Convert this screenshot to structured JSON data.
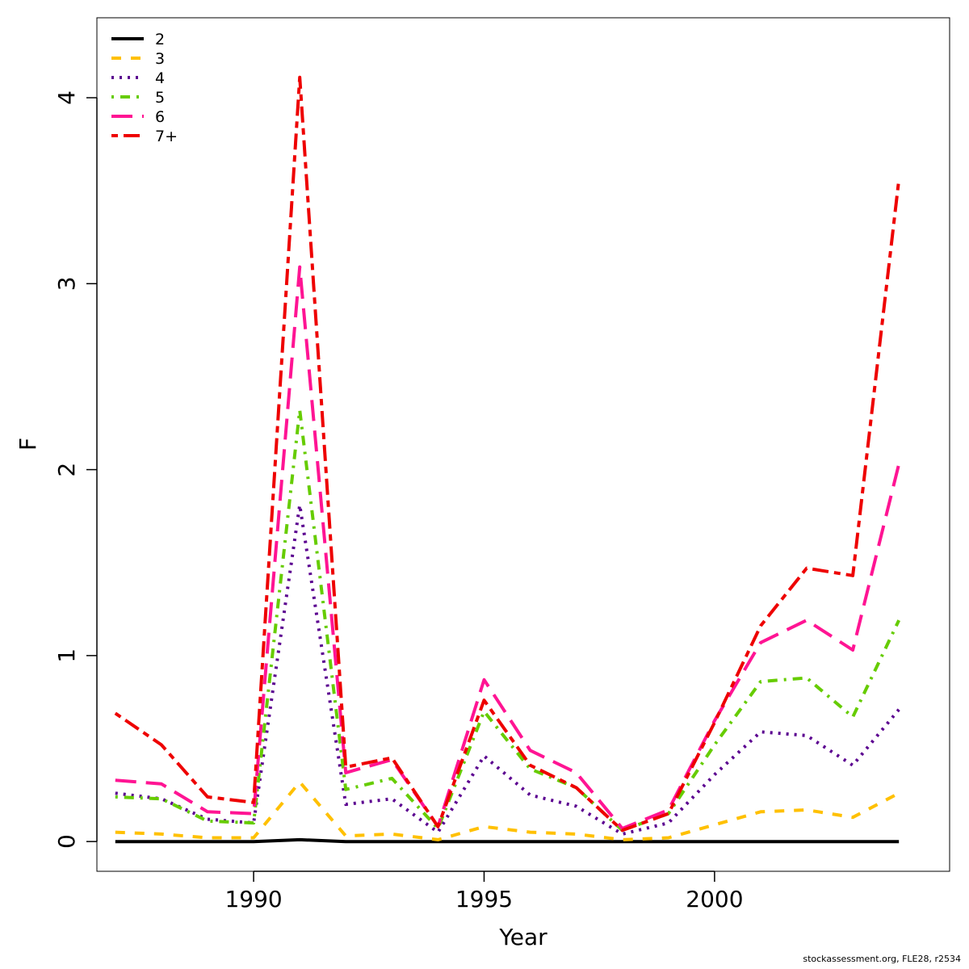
{
  "chart_data": {
    "type": "line",
    "xlabel": "Year",
    "ylabel": "F",
    "xlim": [
      1986.6,
      2005.1
    ],
    "ylim": [
      -0.16,
      4.43
    ],
    "x_ticks": [
      1990,
      1995,
      2000
    ],
    "y_ticks": [
      0,
      1,
      2,
      3,
      4
    ],
    "grid": false,
    "legend_position": "top-left",
    "x": [
      1987,
      1988,
      1989,
      1990,
      1991,
      1992,
      1993,
      1994,
      1995,
      1996,
      1997,
      1998,
      1999,
      2000,
      2001,
      2002,
      2003,
      2004
    ],
    "series": [
      {
        "name": "2",
        "color": "#000000",
        "dash": "solid",
        "values": [
          0.0,
          0.0,
          0.0,
          0.0,
          0.01,
          0.0,
          0.0,
          0.0,
          0.0,
          0.0,
          0.0,
          0.0,
          0.0,
          0.0,
          0.0,
          0.0,
          0.0,
          0.0
        ]
      },
      {
        "name": "3",
        "color": "#FFC000",
        "dash": "dashed",
        "values": [
          0.05,
          0.04,
          0.02,
          0.02,
          0.32,
          0.03,
          0.04,
          0.01,
          0.08,
          0.05,
          0.04,
          0.01,
          0.02,
          0.09,
          0.16,
          0.17,
          0.13,
          0.26
        ]
      },
      {
        "name": "4",
        "color": "#5B0090",
        "dash": "dotted",
        "values": [
          0.26,
          0.23,
          0.12,
          0.1,
          1.81,
          0.2,
          0.23,
          0.05,
          0.46,
          0.25,
          0.19,
          0.04,
          0.1,
          0.36,
          0.59,
          0.57,
          0.41,
          0.71
        ]
      },
      {
        "name": "5",
        "color": "#66CC00",
        "dash": "dotdash",
        "values": [
          0.24,
          0.23,
          0.11,
          0.1,
          2.32,
          0.28,
          0.34,
          0.07,
          0.7,
          0.39,
          0.29,
          0.06,
          0.15,
          0.52,
          0.86,
          0.88,
          0.67,
          1.19
        ]
      },
      {
        "name": "6",
        "color": "#FF1493",
        "dash": "longdash",
        "values": [
          0.33,
          0.31,
          0.16,
          0.15,
          3.09,
          0.37,
          0.44,
          0.08,
          0.87,
          0.49,
          0.37,
          0.07,
          0.17,
          0.65,
          1.07,
          1.19,
          1.03,
          2.03
        ]
      },
      {
        "name": "7+",
        "color": "#EE0000",
        "dash": "twodash",
        "values": [
          0.69,
          0.52,
          0.24,
          0.21,
          4.11,
          0.4,
          0.45,
          0.08,
          0.76,
          0.41,
          0.29,
          0.06,
          0.15,
          0.64,
          1.16,
          1.47,
          1.43,
          3.56
        ]
      }
    ]
  },
  "credit": "stockassessment.org, FLE28, r2534"
}
